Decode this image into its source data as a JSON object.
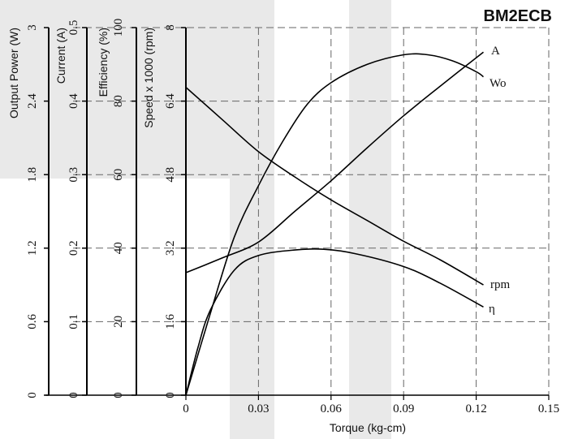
{
  "chart_data": {
    "type": "line",
    "title": "BM2ECB",
    "xlabel": "Torque (kg-cm)",
    "xlim": [
      0,
      0.15
    ],
    "x_ticks": [
      "0",
      "0.03",
      "0.06",
      "0.09",
      "0.12",
      "0.15"
    ],
    "y_axes": [
      {
        "id": "power",
        "label": "Output Power (W)",
        "range": [
          0,
          3
        ],
        "ticks": [
          "0",
          "0.6",
          "1.2",
          "1.8",
          "2.4",
          "3"
        ]
      },
      {
        "id": "current",
        "label": "Current (A)",
        "range": [
          0,
          0.5
        ],
        "ticks": [
          "0",
          "0.1",
          "0.2",
          "0.3",
          "0.4",
          "0.5"
        ]
      },
      {
        "id": "efficiency",
        "label": "Efficiency (%)",
        "range": [
          0,
          100
        ],
        "ticks": [
          "0",
          "20",
          "40",
          "60",
          "80",
          "100"
        ]
      },
      {
        "id": "speed",
        "label": "Speed x 1000 (rpm)",
        "range": [
          0,
          8
        ],
        "ticks": [
          "0",
          "1.6",
          "3.2",
          "4.8",
          "6.4",
          "8"
        ]
      }
    ],
    "grid": true,
    "series": [
      {
        "name": "rpm",
        "axis": "speed",
        "x": [
          0,
          0.015,
          0.03,
          0.045,
          0.06,
          0.075,
          0.09,
          0.105,
          0.123
        ],
        "y": [
          6.7,
          6.0,
          5.3,
          4.75,
          4.25,
          3.8,
          3.35,
          2.95,
          2.4
        ]
      },
      {
        "name": "A",
        "axis": "current",
        "x": [
          0,
          0.01,
          0.02,
          0.03,
          0.04,
          0.05,
          0.06,
          0.075,
          0.09,
          0.1,
          0.11,
          0.12,
          0.123
        ],
        "y": [
          0,
          0.11,
          0.215,
          0.285,
          0.345,
          0.395,
          0.425,
          0.45,
          0.463,
          0.463,
          0.455,
          0.44,
          0.433
        ]
      },
      {
        "name": "Wo",
        "axis": "power",
        "x": [
          0,
          0.015,
          0.03,
          0.045,
          0.06,
          0.075,
          0.09,
          0.105,
          0.123
        ],
        "y": [
          1.0,
          1.12,
          1.25,
          1.5,
          1.75,
          2.02,
          2.28,
          2.52,
          2.8
        ]
      },
      {
        "name": "η",
        "axis": "efficiency",
        "x": [
          0,
          0.005,
          0.01,
          0.02,
          0.03,
          0.045,
          0.057,
          0.07,
          0.09,
          0.105,
          0.123
        ],
        "y": [
          0,
          13,
          23,
          34,
          38,
          39.5,
          39.7,
          38.5,
          35,
          30.5,
          24
        ]
      }
    ]
  }
}
